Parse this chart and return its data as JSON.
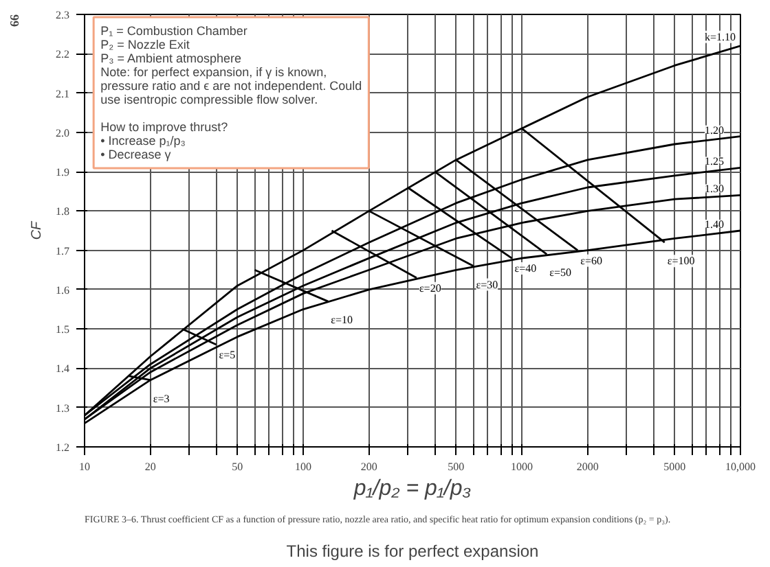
{
  "chart_data": {
    "type": "line",
    "xlabel": "p₁/p₂ = p₁/p₃",
    "ylabel": "CF",
    "log": "x",
    "grid": true,
    "marker": "none",
    "line_style": "solid",
    "x": [
      10,
      20,
      50,
      100,
      200,
      500,
      1000,
      2000,
      5000,
      10000
    ],
    "series": [
      {
        "name": "k=1.10",
        "color": "#000000",
        "values": [
          1.28,
          1.43,
          1.61,
          1.7,
          1.8,
          1.93,
          2.01,
          2.09,
          2.17,
          2.22
        ]
      },
      {
        "name": "1.20",
        "color": "#000000",
        "values": [
          1.28,
          1.41,
          1.55,
          1.64,
          1.72,
          1.82,
          1.88,
          1.93,
          1.97,
          1.99
        ]
      },
      {
        "name": "1.25",
        "color": "#000000",
        "values": [
          1.27,
          1.4,
          1.53,
          1.61,
          1.68,
          1.77,
          1.82,
          1.86,
          1.89,
          1.91
        ]
      },
      {
        "name": "1.30",
        "color": "#000000",
        "values": [
          1.27,
          1.39,
          1.51,
          1.59,
          1.65,
          1.73,
          1.77,
          1.8,
          1.83,
          1.84
        ]
      },
      {
        "name": "1.40",
        "color": "#000000",
        "values": [
          1.26,
          1.37,
          1.48,
          1.55,
          1.6,
          1.65,
          1.68,
          1.7,
          1.73,
          1.75
        ]
      },
      {
        "name": "ε=3",
        "color": "#000000",
        "x": [
          16,
          20
        ],
        "values": [
          1.38,
          1.37
        ]
      },
      {
        "name": "ε=5",
        "color": "#000000",
        "x": [
          28,
          40
        ],
        "values": [
          1.5,
          1.46
        ]
      },
      {
        "name": "ε=10",
        "color": "#000000",
        "x": [
          60,
          130
        ],
        "values": [
          1.65,
          1.57
        ]
      },
      {
        "name": "ε=20",
        "color": "#000000",
        "x": [
          135,
          330
        ],
        "values": [
          1.75,
          1.63
        ]
      },
      {
        "name": "ε=30",
        "color": "#000000",
        "x": [
          200,
          600
        ],
        "values": [
          1.8,
          1.66
        ]
      },
      {
        "name": "ε=40",
        "color": "#000000",
        "x": [
          300,
          900
        ],
        "values": [
          1.86,
          1.68
        ]
      },
      {
        "name": "ε=50",
        "color": "#000000",
        "x": [
          400,
          1300
        ],
        "values": [
          1.9,
          1.69
        ]
      },
      {
        "name": "ε=60",
        "color": "#000000",
        "x": [
          500,
          1800
        ],
        "values": [
          1.93,
          1.7
        ]
      },
      {
        "name": "ε=100",
        "color": "#000000",
        "x": [
          1000,
          4500
        ],
        "values": [
          2.01,
          1.72
        ]
      }
    ],
    "xlim": [
      10,
      10000
    ],
    "ylim": [
      1.2,
      2.3
    ],
    "xticks": [
      10,
      20,
      {
        "value": 30,
        "label": null
      },
      {
        "value": 40,
        "label": null
      },
      50,
      {
        "value": 60,
        "label": null
      },
      {
        "value": 70,
        "label": null
      },
      {
        "value": 80,
        "label": null
      },
      {
        "value": 90,
        "label": null
      },
      100,
      200,
      {
        "value": 300,
        "label": null
      },
      {
        "value": 400,
        "label": null
      },
      500,
      {
        "value": 600,
        "label": null
      },
      {
        "value": 700,
        "label": null
      },
      {
        "value": 800,
        "label": null
      },
      {
        "value": 900,
        "label": null
      },
      1000,
      2000,
      {
        "value": 3000,
        "label": null
      },
      {
        "value": 4000,
        "label": null
      },
      5000,
      {
        "value": 6000,
        "label": null
      },
      {
        "value": 7000,
        "label": null
      },
      {
        "value": 8000,
        "label": null
      },
      {
        "value": 9000,
        "label": null
      },
      {
        "value": 10000,
        "label": "10,000"
      }
    ],
    "yticks": [
      1.2,
      1.3,
      1.4,
      1.5,
      1.6,
      1.7,
      1.8,
      1.9,
      {
        "value": 2.0,
        "label": "2.0"
      },
      2.1,
      2.2,
      2.3
    ],
    "annotations": [
      "P₁ = Combustion Chamber\nP₂ = Nozzle Exit\nP₃ = Ambient atmosphere\nNote: for perfect expansion, if γ is known,\npressure ratio and ϵ are not independent. Could\nuse isentropic compressible flow solver.\n\nHow to improve thrust?\n•   Increase p₁/p₃\n•   Decrease γ",
      "66",
      "FIGURE 3–6. Thrust coefficient CF as a function of pressure ratio, nozzle area ratio, and specific heat ratio for optimum expansion conditions (p₂ = p₃).",
      "This figure is for perfect expansion"
    ]
  }
}
